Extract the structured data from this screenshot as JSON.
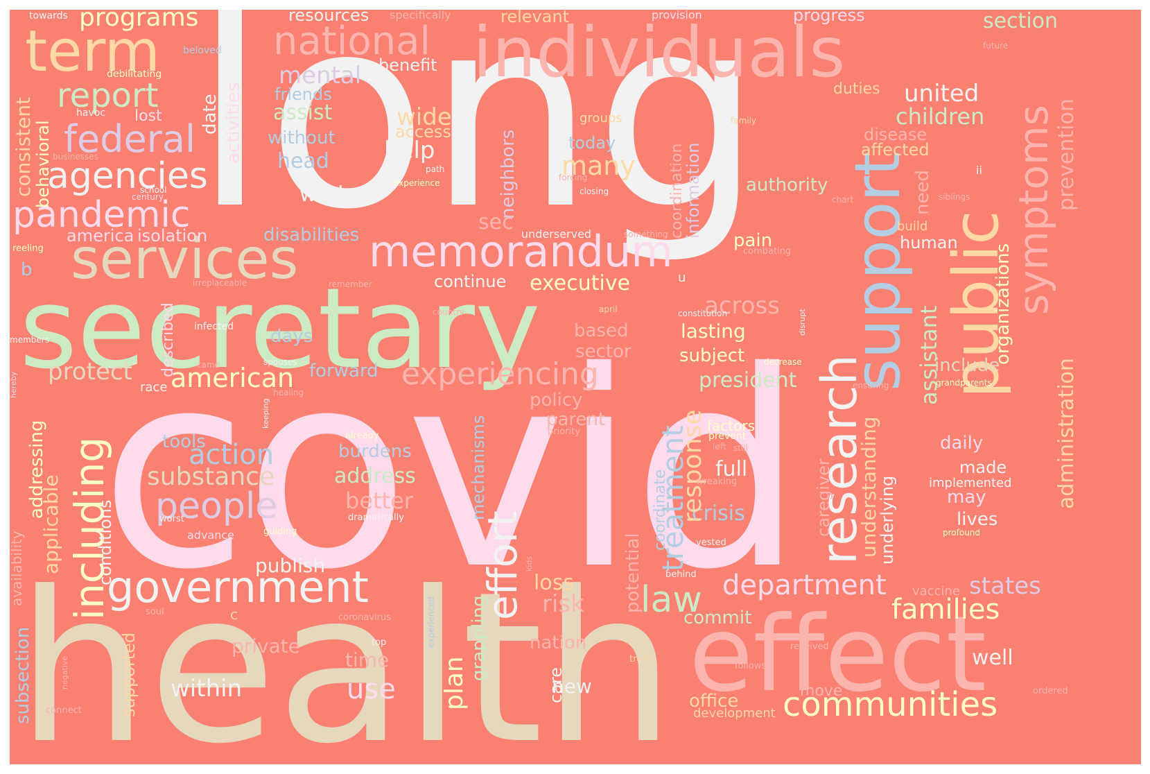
{
  "words": {
    "long": "long",
    "covid": "covid",
    "health": "health",
    "secretary": "secretary",
    "individuals": "individuals",
    "effect": "effect",
    "term": "term",
    "support": "support",
    "public": "public",
    "research": "research",
    "symptoms": "symptoms",
    "services": "services",
    "memorandum": "memorandum",
    "government": "government",
    "national": "national",
    "federal": "federal",
    "agencies": "agencies",
    "pandemic": "pandemic",
    "report": "report",
    "programs": "programs",
    "communities": "communities",
    "department": "department",
    "experiencing": "experiencing",
    "including": "including",
    "people": "people",
    "law": "law",
    "effort": "effort",
    "american": "american",
    "action": "action",
    "substance": "substance",
    "families": "families",
    "treatment": "treatment",
    "response": "response",
    "protect": "protect",
    "mental": "mental",
    "united": "united",
    "children": "children",
    "across": "across",
    "states": "states",
    "assistant": "assistant",
    "administration": "administration",
    "prevention": "prevention",
    "section": "section",
    "executive": "executive",
    "many": "many",
    "help": "help",
    "wide": "wide",
    "assist": "assist",
    "president": "president",
    "lasting": "lasting",
    "work": "work",
    "address": "address",
    "better": "better",
    "full": "full",
    "crisis": "crisis",
    "plan": "plan",
    "use": "use",
    "within": "within",
    "publish": "publish",
    "consistent": "consistent",
    "behavioral": "behavioral",
    "activities": "activities",
    "date": "date",
    "lost": "lost",
    "head": "head",
    "friends": "friends",
    "without": "without",
    "access": "access",
    "benefit": "benefit",
    "resources": "resources",
    "relevant": "relevant",
    "progress": "progress",
    "duties": "duties",
    "disease": "disease",
    "affected": "affected",
    "authority": "authority",
    "pain": "pain",
    "human": "human",
    "build": "build",
    "include": "include",
    "subject": "subject",
    "based": "based",
    "sector": "sector",
    "days": "days",
    "forward": "forward",
    "policy": "policy",
    "parent": "parent",
    "tools": "tools",
    "burdens": "burdens",
    "disabilities": "disabilities",
    "america": "america",
    "isolation": "isolation",
    "sec": "sec",
    "continue": "continue",
    "information": "information",
    "coordination": "coordination",
    "neighbors": "neighbors",
    "today": "today",
    "groups": "groups",
    "need": "need",
    "daily": "daily",
    "made": "made",
    "implemented": "implemented",
    "may": "may",
    "lives": "lives",
    "understanding": "understanding",
    "underlying": "underlying",
    "caregiver": "caregiver",
    "organizations": "organizations",
    "coordinate": "coordinate",
    "potential": "potential",
    "mechanisms": "mechanisms",
    "grappling": "grappling",
    "loss": "loss",
    "risk": "risk",
    "nation": "nation",
    "care": "care",
    "new": "new",
    "commit": "commit",
    "office": "office",
    "development": "development",
    "move": "move",
    "well": "well",
    "vaccine": "vaccine",
    "private": "private",
    "time": "time",
    "supported": "supported",
    "subsection": "subsection",
    "availability": "availability",
    "conditions": "conditions",
    "applicable": "applicable",
    "addressing": "addressing",
    "described": "described",
    "factors": "factors",
    "prevent": "prevent",
    "towards": "towards",
    "beloved": "beloved",
    "debilitating": "debilitating",
    "havoc": "havoc",
    "businesses": "businesses",
    "school": "school",
    "century": "century",
    "reeling": "reeling",
    "b": "b",
    "irreplaceable": "irreplaceable",
    "remember": "remember",
    "infected": "infected",
    "members": "members",
    "hereby": "hereby",
    "race": "race",
    "came": "came",
    "spouses": "spouses",
    "keeping": "keeping",
    "healing": "healing",
    "country": "country",
    "april": "april",
    "constitution": "constitution",
    "disrupt": "disrupt",
    "u": "u",
    "decrease": "decrease",
    "ensuring": "ensuring",
    "grandparents": "grandparents",
    "specifically": "specifically",
    "provision": "provision",
    "future": "future",
    "family": "family",
    "path": "path",
    "experience": "experience",
    "forcing": "forcing",
    "closing": "closing",
    "ii": "ii",
    "chart": "chart",
    "siblings": "siblings",
    "underserved": "underserved",
    "something": "something",
    "combating": "combating",
    "already": "already",
    "priority": "priority",
    "left": "left",
    "still": "still",
    "wreaking": "wreaking",
    "dramatically": "dramatically",
    "worst": "worst",
    "advance": "advance",
    "guiding": "guiding",
    "vested": "vested",
    "profound": "profound",
    "kids": "kids",
    "behind": "behind",
    "soul": "soul",
    "c": "c",
    "coronavirus": "coronavirus",
    "experienced": "experienced",
    "negative": "negative",
    "top": "top",
    "connect": "connect",
    "treat": "treat",
    "received": "received",
    "follows": "follows",
    "ordered": "ordered"
  }
}
